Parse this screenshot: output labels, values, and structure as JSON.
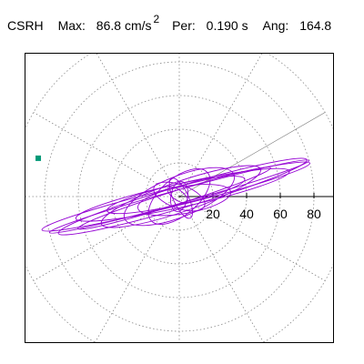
{
  "header": {
    "station": "CSRH",
    "max_label": "Max:",
    "max_value": "86.8",
    "max_unit": "cm/s",
    "max_unit_exp": "2",
    "per_label": "Per:",
    "per_value": "0.190 s",
    "ang_label": "Ang:",
    "ang_value": "164.8"
  },
  "colors": {
    "trace": "#9400d3",
    "marker": "#009977",
    "grid": "#888888",
    "frame": "#000000"
  },
  "chart_data": {
    "type": "polar-orbit",
    "title": "",
    "xlabel": "",
    "ylabel": "",
    "radial_ticks": [
      20,
      40,
      60,
      80
    ],
    "radial_max": 100,
    "angular_grid_deg": 30,
    "max_amplitude": 86.8,
    "max_angle_deg": 164.8,
    "period_s": 0.19,
    "grid": true,
    "orbits": [
      {
        "a": 80,
        "b": 4.0,
        "angle": -15.5,
        "cx": 0,
        "cy": 0
      },
      {
        "a": 82,
        "b": 5.5,
        "angle": -14.0,
        "cx": -2,
        "cy": 0
      },
      {
        "a": 77,
        "b": 6.5,
        "angle": -16.5,
        "cx": 2,
        "cy": 0
      },
      {
        "a": 65,
        "b": 7.0,
        "angle": -12.5,
        "cx": 2,
        "cy": 1
      },
      {
        "a": 60,
        "b": 4.0,
        "angle": -17.5,
        "cx": -3,
        "cy": -1
      },
      {
        "a": 50,
        "b": 9.0,
        "angle": -19.0,
        "cx": 1,
        "cy": 0
      },
      {
        "a": 42,
        "b": 6.0,
        "angle": -13.0,
        "cx": -2,
        "cy": 1
      },
      {
        "a": 35,
        "b": 12.0,
        "angle": -22.0,
        "cx": 0,
        "cy": 0
      },
      {
        "a": 28,
        "b": 8.0,
        "angle": -10.0,
        "cx": 3,
        "cy": -2
      },
      {
        "a": 22,
        "b": 11.0,
        "angle": -40.0,
        "cx": 0,
        "cy": 0
      },
      {
        "a": 16,
        "b": 7.0,
        "angle": 20.0,
        "cx": 0,
        "cy": 0
      },
      {
        "a": 13,
        "b": 4.5,
        "angle": 65.0,
        "cx": 1,
        "cy": -1
      },
      {
        "a": 9,
        "b": 5.0,
        "angle": -80.0,
        "cx": 0,
        "cy": 0
      },
      {
        "a": 7,
        "b": 3.0,
        "angle": 35.0,
        "cx": -1,
        "cy": 1
      }
    ]
  }
}
